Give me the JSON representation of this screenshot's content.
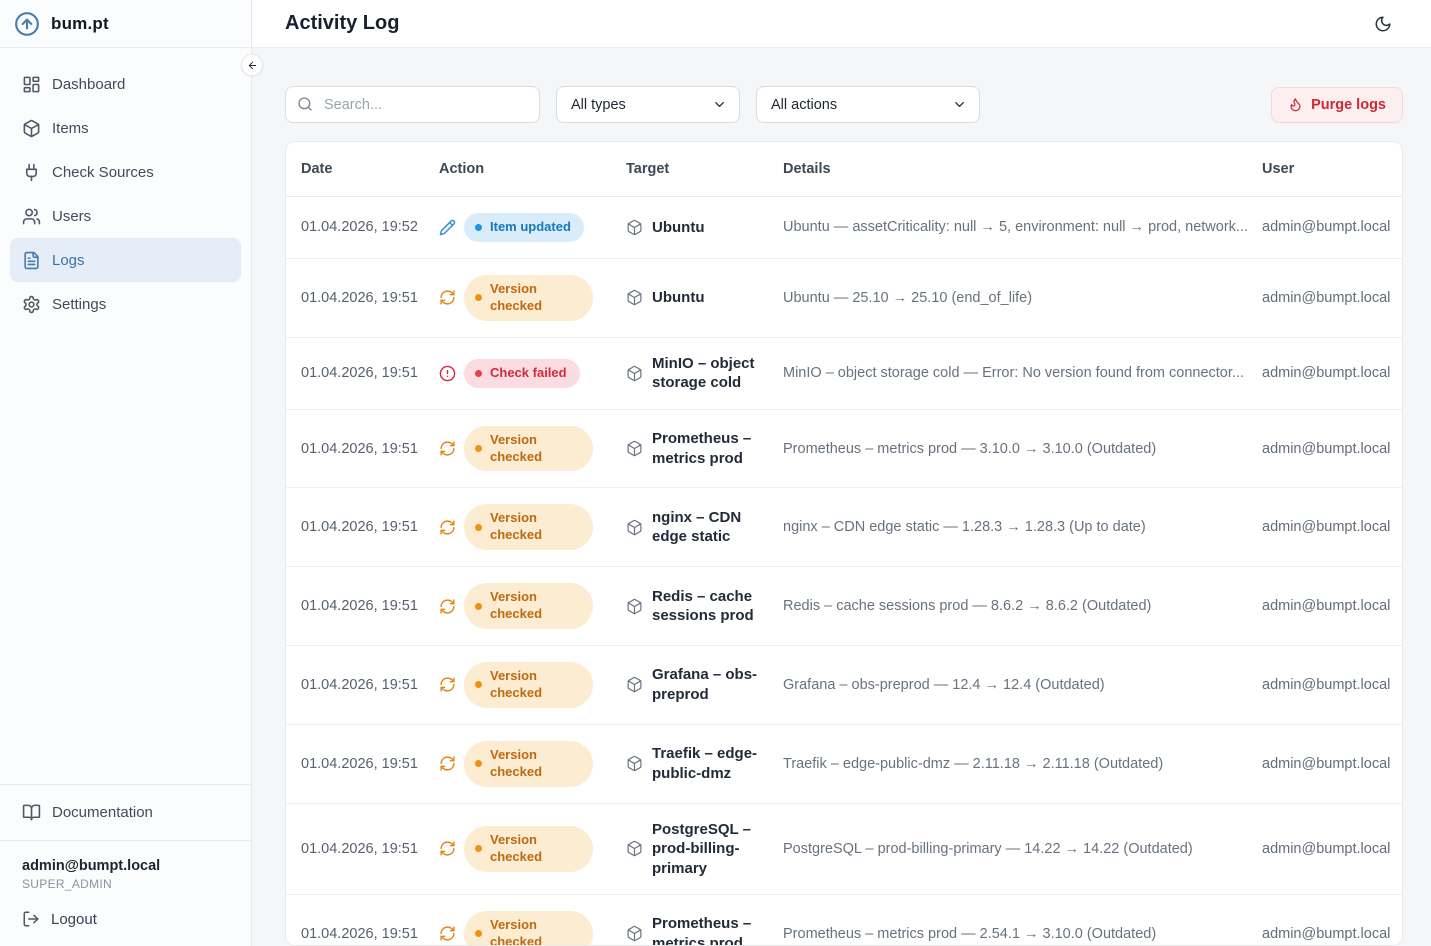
{
  "brand": {
    "name": "bum.pt",
    "logo_icon": "circle-arrow-up-icon"
  },
  "sidebar": {
    "items": [
      {
        "label": "Dashboard",
        "icon": "layout-dashboard",
        "active": false
      },
      {
        "label": "Items",
        "icon": "package",
        "active": false
      },
      {
        "label": "Check Sources",
        "icon": "plug",
        "active": false
      },
      {
        "label": "Users",
        "icon": "users",
        "active": false
      },
      {
        "label": "Logs",
        "icon": "file-text",
        "active": true
      },
      {
        "label": "Settings",
        "icon": "settings",
        "active": false
      }
    ],
    "documentation_label": "Documentation",
    "documentation_icon": "book-open-icon",
    "user": {
      "email": "admin@bumpt.local",
      "role": "SUPER_ADMIN"
    },
    "logout_label": "Logout",
    "logout_icon": "log-out-icon",
    "collapse_icon": "arrow-left-icon"
  },
  "header": {
    "title": "Activity Log",
    "theme_icon": "moon-icon"
  },
  "filters": {
    "search_placeholder": "Search...",
    "search_icon": "search-icon",
    "type_filter": "All types",
    "action_filter": "All actions",
    "purge_label": "Purge logs",
    "purge_icon": "flame-icon"
  },
  "table": {
    "columns": [
      "Date",
      "Action",
      "Target",
      "Details",
      "User"
    ],
    "target_icon": "package-icon",
    "rows": [
      {
        "date": "01.04.2026, 19:52",
        "action": "Item updated",
        "action_type": "update",
        "action_icon": "pencil-icon",
        "target": "Ubuntu",
        "details": "Ubuntu — assetCriticality: null → 5, environment: null → prod, network...",
        "user": "admin@bumpt.local"
      },
      {
        "date": "01.04.2026, 19:51",
        "action": "Version checked",
        "action_type": "check",
        "action_icon": "refresh-icon",
        "target": "Ubuntu",
        "details": "Ubuntu — 25.10 → 25.10 (end_of_life)",
        "user": "admin@bumpt.local"
      },
      {
        "date": "01.04.2026, 19:51",
        "action": "Check failed",
        "action_type": "fail",
        "action_icon": "alert-circle-icon",
        "target": "MinIO – object storage cold",
        "details": "MinIO – object storage cold — Error: No version found from connector...",
        "user": "admin@bumpt.local"
      },
      {
        "date": "01.04.2026, 19:51",
        "action": "Version checked",
        "action_type": "check",
        "action_icon": "refresh-icon",
        "target": "Prometheus – metrics prod",
        "details": "Prometheus – metrics prod — 3.10.0 → 3.10.0 (Outdated)",
        "user": "admin@bumpt.local"
      },
      {
        "date": "01.04.2026, 19:51",
        "action": "Version checked",
        "action_type": "check",
        "action_icon": "refresh-icon",
        "target": "nginx – CDN edge static",
        "details": "nginx – CDN edge static — 1.28.3 → 1.28.3 (Up to date)",
        "user": "admin@bumpt.local"
      },
      {
        "date": "01.04.2026, 19:51",
        "action": "Version checked",
        "action_type": "check",
        "action_icon": "refresh-icon",
        "target": "Redis – cache sessions prod",
        "details": "Redis – cache sessions prod — 8.6.2 → 8.6.2 (Outdated)",
        "user": "admin@bumpt.local"
      },
      {
        "date": "01.04.2026, 19:51",
        "action": "Version checked",
        "action_type": "check",
        "action_icon": "refresh-icon",
        "target": "Grafana – obs-preprod",
        "details": "Grafana – obs-preprod — 12.4 → 12.4 (Outdated)",
        "user": "admin@bumpt.local"
      },
      {
        "date": "01.04.2026, 19:51",
        "action": "Version checked",
        "action_type": "check",
        "action_icon": "refresh-icon",
        "target": "Traefik – edge-public-dmz",
        "details": "Traefik – edge-public-dmz — 2.11.18 → 2.11.18 (Outdated)",
        "user": "admin@bumpt.local"
      },
      {
        "date": "01.04.2026, 19:51",
        "action": "Version checked",
        "action_type": "check",
        "action_icon": "refresh-icon",
        "target": "PostgreSQL – prod-billing-primary",
        "details": "PostgreSQL – prod-billing-primary — 14.22 → 14.22 (Outdated)",
        "user": "admin@bumpt.local"
      },
      {
        "date": "01.04.2026, 19:51",
        "action": "Version checked",
        "action_type": "check",
        "action_icon": "refresh-icon",
        "target": "Prometheus – metrics prod",
        "details": "Prometheus – metrics prod — 2.54.1 → 3.10.0 (Outdated)",
        "user": "admin@bumpt.local"
      }
    ]
  },
  "colors": {
    "active_nav_bg": "#e4edf8",
    "active_nav_text": "#3b74a8",
    "badge_update_bg": "#d9ecf9",
    "badge_update_text": "#1878bd",
    "badge_check_bg": "#fbecd2",
    "badge_check_text": "#bf6a12",
    "badge_fail_bg": "#fbdce0",
    "badge_fail_text": "#d6293b",
    "purge_bg": "#fdeef0",
    "purge_text": "#cc2936",
    "brand_blue": "#4a80ad"
  }
}
